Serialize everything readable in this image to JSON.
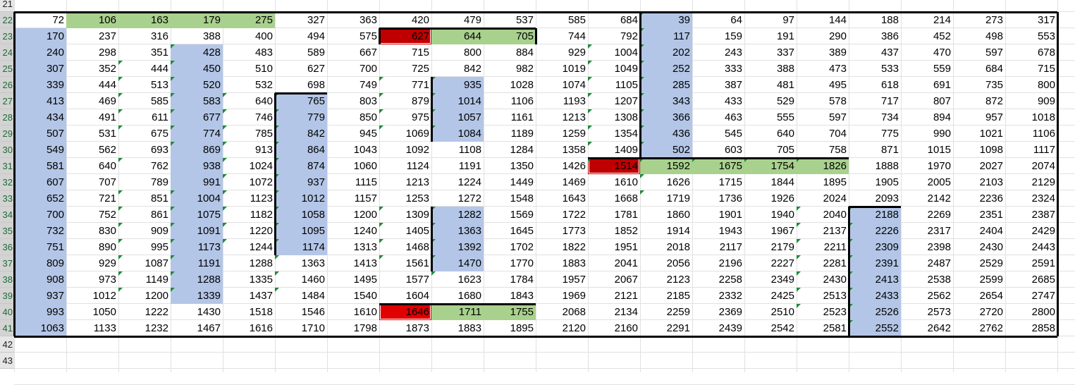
{
  "sheet": {
    "row_numbers": [
      "21",
      "22",
      "23",
      "24",
      "25",
      "26",
      "27",
      "28",
      "29",
      "30",
      "31",
      "32",
      "33",
      "34",
      "35",
      "36",
      "37",
      "38",
      "39",
      "40",
      "41",
      "42",
      "43"
    ],
    "rows": [
      [
        72,
        106,
        163,
        179,
        275,
        327,
        363,
        420,
        479,
        537,
        585,
        684,
        39,
        64,
        97,
        144,
        188,
        214,
        273,
        317
      ],
      [
        170,
        237,
        316,
        388,
        400,
        494,
        575,
        627,
        644,
        705,
        744,
        792,
        117,
        159,
        191,
        290,
        386,
        452,
        498,
        553
      ],
      [
        240,
        298,
        351,
        428,
        483,
        589,
        667,
        715,
        800,
        884,
        929,
        1004,
        202,
        243,
        337,
        389,
        437,
        470,
        597,
        678
      ],
      [
        307,
        352,
        444,
        450,
        510,
        627,
        700,
        725,
        842,
        982,
        1019,
        1049,
        252,
        333,
        388,
        473,
        533,
        559,
        684,
        715
      ],
      [
        339,
        444,
        513,
        520,
        532,
        698,
        749,
        771,
        935,
        1028,
        1074,
        1105,
        285,
        387,
        481,
        495,
        618,
        691,
        735,
        800
      ],
      [
        413,
        469,
        585,
        583,
        640,
        765,
        803,
        879,
        1014,
        1106,
        1193,
        1207,
        343,
        433,
        529,
        578,
        717,
        807,
        872,
        909
      ],
      [
        434,
        491,
        611,
        677,
        746,
        779,
        850,
        975,
        1057,
        1161,
        1213,
        1308,
        366,
        463,
        555,
        597,
        734,
        894,
        957,
        1018
      ],
      [
        507,
        531,
        675,
        774,
        785,
        842,
        945,
        1069,
        1084,
        1189,
        1259,
        1354,
        436,
        545,
        640,
        704,
        775,
        990,
        1021,
        1106
      ],
      [
        549,
        562,
        693,
        869,
        913,
        864,
        1043,
        1092,
        1108,
        1284,
        1358,
        1409,
        502,
        603,
        705,
        758,
        871,
        1015,
        1098,
        1117
      ],
      [
        581,
        640,
        762,
        938,
        1024,
        874,
        1060,
        1124,
        1191,
        1350,
        1426,
        1514,
        1592,
        1675,
        1754,
        1826,
        1888,
        1970,
        2027,
        2074
      ],
      [
        607,
        707,
        789,
        991,
        1072,
        937,
        1115,
        1213,
        1224,
        1449,
        1469,
        1610,
        1626,
        1715,
        1844,
        1895,
        1905,
        2005,
        2103,
        2129
      ],
      [
        652,
        721,
        851,
        1004,
        1123,
        1012,
        1157,
        1253,
        1272,
        1548,
        1643,
        1668,
        1719,
        1736,
        1926,
        2024,
        2093,
        2142,
        2236,
        2324
      ],
      [
        700,
        752,
        861,
        1075,
        1182,
        1058,
        1200,
        1309,
        1282,
        1569,
        1722,
        1781,
        1860,
        1901,
        1940,
        2040,
        2188,
        2269,
        2351,
        2387
      ],
      [
        732,
        830,
        909,
        1091,
        1220,
        1095,
        1240,
        1405,
        1363,
        1645,
        1773,
        1852,
        1914,
        1943,
        1967,
        2137,
        2226,
        2317,
        2404,
        2429
      ],
      [
        751,
        890,
        995,
        1173,
        1244,
        1174,
        1313,
        1468,
        1392,
        1702,
        1822,
        1951,
        2018,
        2117,
        2179,
        2211,
        2309,
        2398,
        2430,
        2443
      ],
      [
        809,
        929,
        1087,
        1191,
        1288,
        1363,
        1413,
        1561,
        1470,
        1770,
        1883,
        2041,
        2056,
        2196,
        2227,
        2281,
        2391,
        2487,
        2529,
        2591
      ],
      [
        908,
        973,
        1149,
        1288,
        1335,
        1460,
        1495,
        1577,
        1623,
        1784,
        1957,
        2067,
        2123,
        2258,
        2349,
        2430,
        2413,
        2538,
        2599,
        2685
      ],
      [
        937,
        1012,
        1200,
        1339,
        1437,
        1484,
        1540,
        1604,
        1680,
        1843,
        1969,
        2121,
        2185,
        2332,
        2425,
        2513,
        2433,
        2562,
        2654,
        2747
      ],
      [
        993,
        1050,
        1222,
        1430,
        1518,
        1546,
        1610,
        1646,
        1711,
        1755,
        2068,
        2134,
        2259,
        2369,
        2510,
        2523,
        2526,
        2573,
        2720,
        2800
      ],
      [
        1063,
        1133,
        1232,
        1467,
        1616,
        1710,
        1798,
        1873,
        1883,
        1895,
        2120,
        2160,
        2291,
        2439,
        2542,
        2581,
        2552,
        2642,
        2762,
        2858
      ]
    ],
    "colors": {
      "blue": "#b4c6e7",
      "green": "#a9d18e",
      "red": "#e00000",
      "darkred": "#c00000"
    }
  }
}
